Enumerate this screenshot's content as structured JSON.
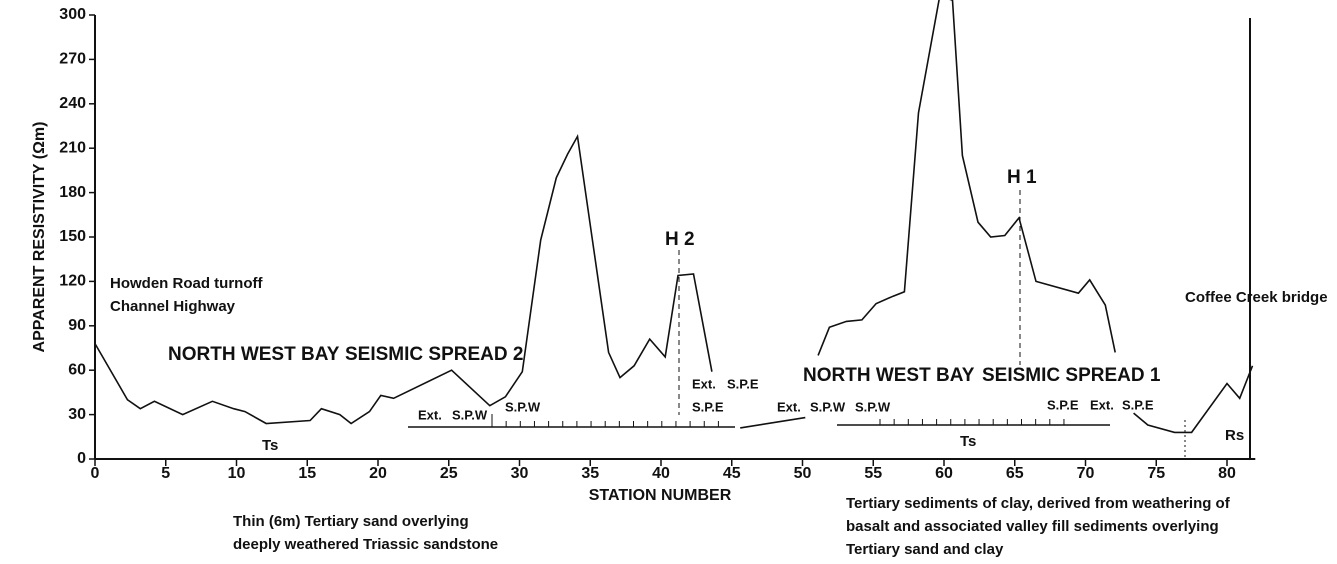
{
  "chart_data": {
    "type": "line",
    "xlabel": "STATION NUMBER",
    "ylabel": "APPARENT RESISTIVITY (Ωm)",
    "x": [
      0,
      2.3,
      3.2,
      4.2,
      6.2,
      8.3,
      9.8,
      10.6,
      12.1,
      15.2,
      16.0,
      17.3,
      18.1,
      19.4,
      20.2,
      21.1,
      25.2,
      27.9,
      29.0,
      30.2,
      31.5,
      32.6,
      33.4,
      34.1,
      36.3,
      37.1,
      38.1,
      39.2,
      40.3,
      41.2,
      42.3,
      43.6,
      null,
      45.6,
      50.2,
      null,
      51.1,
      51.9,
      53.1,
      54.2,
      55.2,
      56.4,
      57.2,
      58.2,
      59.7,
      60.6,
      61.3,
      62.4,
      63.3,
      64.3,
      65.3,
      66.5,
      69.5,
      70.3,
      71.4,
      72.1,
      null,
      73.4,
      74.4,
      76.3,
      77.5,
      80.0,
      80.9,
      81.8
    ],
    "values": [
      78,
      40,
      34,
      39,
      30,
      39,
      34,
      32,
      24,
      26,
      34,
      30,
      24,
      32,
      43,
      41,
      60,
      36,
      42,
      59,
      148,
      190,
      206,
      218,
      72,
      55,
      63,
      81,
      69,
      124,
      125,
      59,
      null,
      21,
      28,
      null,
      70,
      89,
      93,
      94,
      105,
      110,
      113,
      234,
      313,
      310,
      205,
      160,
      150,
      151,
      163,
      120,
      112,
      121,
      104,
      72,
      null,
      31,
      23,
      18,
      18,
      51,
      41,
      63
    ],
    "color": "#111111",
    "xlim": [
      0,
      82
    ],
    "ylim": [
      0,
      300
    ],
    "xticks": [
      0,
      5,
      10,
      15,
      20,
      25,
      30,
      35,
      40,
      45,
      50,
      55,
      60,
      65,
      70,
      75,
      80
    ],
    "yticks": [
      0,
      30,
      60,
      90,
      120,
      150,
      180,
      210,
      240,
      270,
      300
    ],
    "annotations": [
      "Howden Road turnoff",
      "Channel Highway",
      "NORTH WEST BAY",
      "SEISMIC SPREAD 2",
      "Ts",
      "Ext.",
      "S.P.W",
      "S.P.W",
      "H 2",
      "Ext.",
      "S.P.E",
      "S.P.E",
      "Ext.",
      "S.P.W",
      "S.P.W",
      "NORTH WEST BAY",
      "SEISMIC SPREAD 1",
      "H 1",
      "S.P.E",
      "Ext.",
      "S.P.E",
      "Ts",
      "Coffee Creek bridge",
      "Rs",
      "Thin (6m)  Tertiary sand overlying",
      "deeply weathered Triassic sandstone",
      "Tertiary sediments of clay, derived from  weathering of",
      "basalt and associated valley fill sediments overlying",
      "Tertiary sand and clay"
    ]
  }
}
